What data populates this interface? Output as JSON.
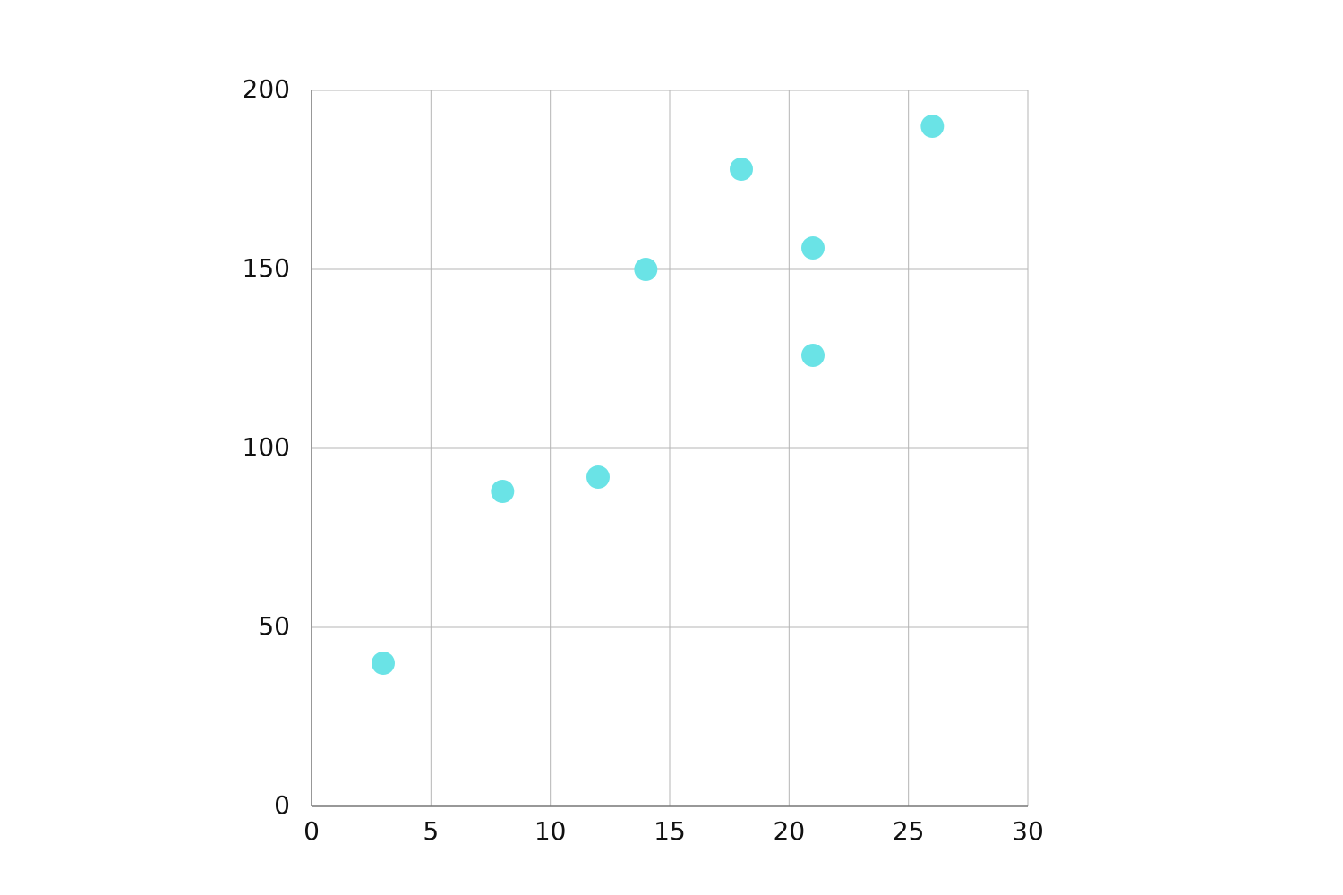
{
  "chart_data": {
    "type": "scatter",
    "x": [
      3,
      8,
      12,
      14,
      18,
      21,
      21,
      26
    ],
    "values": [
      40,
      88,
      92,
      150,
      178,
      156,
      126,
      190
    ],
    "color": "#6ae3e6",
    "xlim": [
      0,
      30
    ],
    "xticks": [
      0,
      5,
      10,
      15,
      20,
      25,
      30
    ],
    "ylim": [
      0,
      200
    ],
    "yticks": [
      0,
      50,
      100,
      150,
      200
    ],
    "grid": true
  }
}
